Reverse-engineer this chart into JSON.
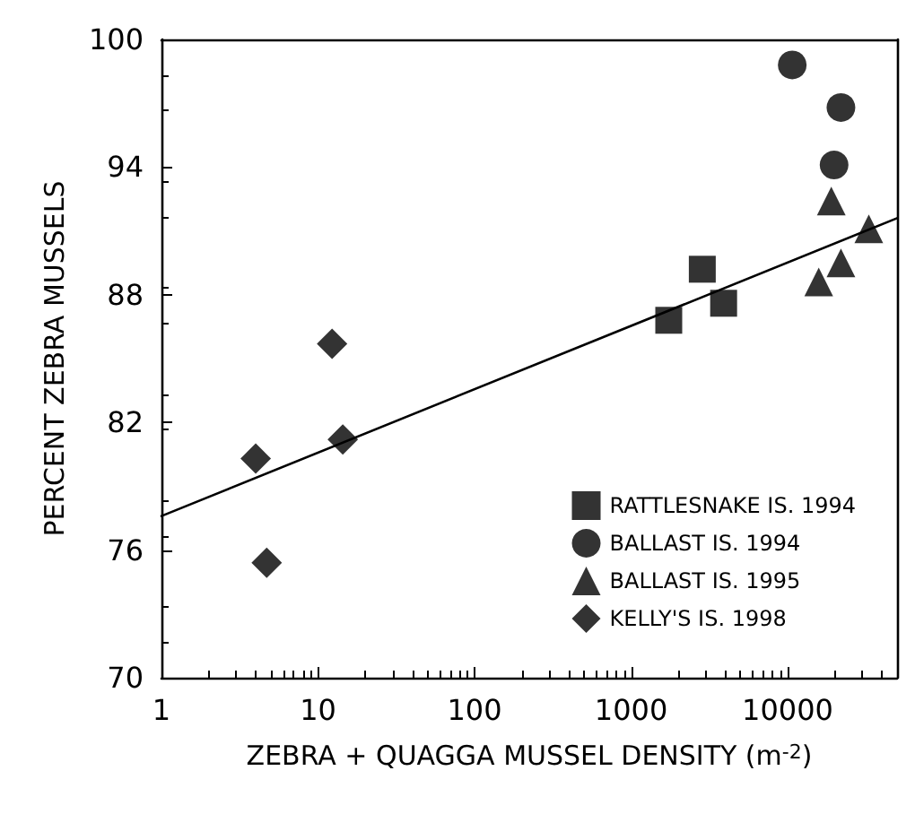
{
  "chart_data": {
    "type": "scatter",
    "xlabel": "ZEBRA + QUAGGA MUSSEL DENSITY (m$^{-2}$)",
    "ylabel": "PERCENT ZEBRA MUSSELS",
    "log": "x",
    "xlim": [
      1,
      50000
    ],
    "xticks": [
      1,
      10,
      100,
      1000,
      10000
    ],
    "ylim": [
      70,
      100
    ],
    "yticks": [
      70,
      76,
      82,
      88,
      94,
      100
    ],
    "grid": false,
    "legend": "bottom right",
    "series": [
      {
        "name": "RATTLESNAKE IS. 1994",
        "color": "#000000",
        "marker": "square",
        "x": [
          1740,
          2850,
          3900
        ],
        "values": [
          86.8,
          89.2,
          87.6
        ]
      },
      {
        "name": "BALLAST IS. 1994",
        "color": "#000000",
        "marker": "circle",
        "x": [
          10700,
          21900,
          19800
        ],
        "values": [
          98.8,
          96.8,
          94.1
        ]
      },
      {
        "name": "BALLAST IS. 1995",
        "color": "#000000",
        "marker": "triangle",
        "x": [
          19000,
          15800,
          21900,
          33000
        ],
        "values": [
          92.4,
          88.6,
          89.5,
          91.1
        ]
      },
      {
        "name": "KELLY'S IS. 1998",
        "color": "#000000",
        "marker": "diamond",
        "x": [
          4.0,
          4.7,
          12.3,
          14.4
        ],
        "values": [
          80.3,
          75.4,
          85.7,
          81.2
        ]
      },
      {
        "type": "line",
        "color": "#000000",
        "marker": "none",
        "line_style": "solid",
        "x": [
          1,
          50000
        ],
        "values": [
          77.6,
          91.6
        ]
      }
    ]
  }
}
